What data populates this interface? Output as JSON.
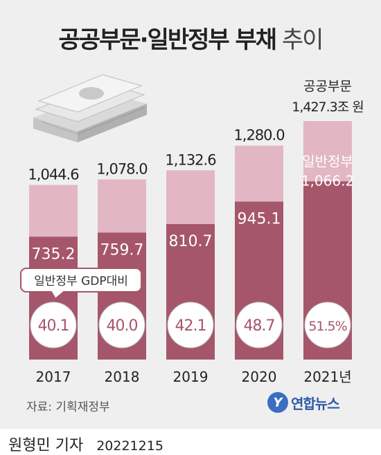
{
  "title": {
    "main": "공공부문·일반정부 부채",
    "sub": "추이"
  },
  "chart_data": {
    "type": "bar",
    "categories": [
      "2017",
      "2018",
      "2019",
      "2020",
      "2021년"
    ],
    "series": [
      {
        "name": "공공부문",
        "values": [
          1044.6,
          1078.0,
          1132.6,
          1280.0,
          1427.3
        ]
      },
      {
        "name": "일반정부",
        "values": [
          735.2,
          759.7,
          810.7,
          945.1,
          1066.2
        ]
      },
      {
        "name": "일반정부 GDP대비",
        "values": [
          40.1,
          40.0,
          42.1,
          48.7,
          51.5
        ]
      }
    ],
    "value_labels": {
      "public": [
        "1,044.6",
        "1,078.0",
        "1,132.6",
        "1,280.0",
        "1,427.3조 원"
      ],
      "general": [
        "735.2",
        "759.7",
        "810.7",
        "945.1",
        "1,066.2"
      ],
      "gdp": [
        "40.1",
        "40.0",
        "42.1",
        "48.7",
        "51.5%"
      ]
    },
    "last_bar_labels": {
      "public_name": "공공부문",
      "general_name": "일반정부"
    },
    "gdp_callout": "일반정부 GDP대비",
    "ylim": [
      0,
      1480
    ],
    "colors": {
      "public": "#e2b7c3",
      "general": "#a6566a",
      "callout_border": "#a6566a",
      "gdp_text": "#a6566a"
    }
  },
  "source": "자료: 기획재정부",
  "logo": {
    "mark": "Y",
    "text": "연합뉴스"
  },
  "byline": {
    "author": "원형민 기자",
    "date": "20221215"
  }
}
